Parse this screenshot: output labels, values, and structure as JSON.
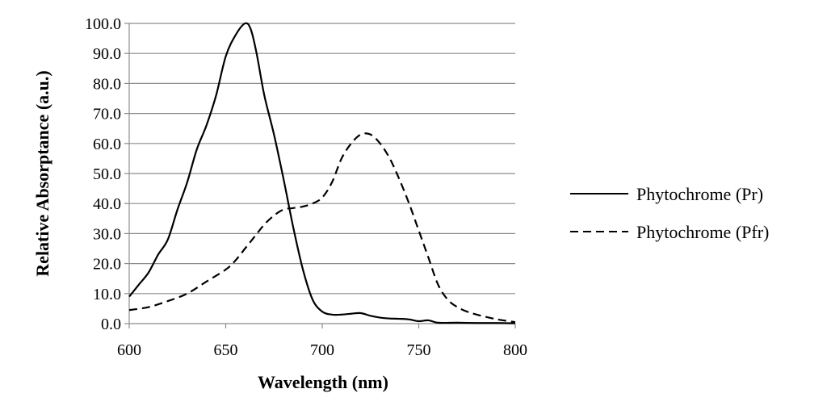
{
  "chart_data": {
    "type": "line",
    "title": "",
    "xlabel": "Wavelength  (nm)",
    "ylabel": "Relative Absorptance  (a.u.)",
    "xlim": [
      600,
      800
    ],
    "ylim": [
      0,
      100
    ],
    "x_ticks": [
      "600",
      "650",
      "700",
      "750",
      "800"
    ],
    "y_ticks": [
      "0.0",
      "10.0",
      "20.0",
      "30.0",
      "40.0",
      "50.0",
      "60.0",
      "70.0",
      "80.0",
      "90.0",
      "100.0"
    ],
    "grid": "horizontal",
    "legend_position": "right",
    "series": [
      {
        "name": "Phytochrome (Pr)",
        "line_style": "solid",
        "color": "#000000",
        "points": [
          [
            600,
            9
          ],
          [
            605,
            13
          ],
          [
            610,
            17
          ],
          [
            615,
            23
          ],
          [
            620,
            28
          ],
          [
            625,
            38
          ],
          [
            630,
            47
          ],
          [
            635,
            58
          ],
          [
            640,
            66
          ],
          [
            645,
            76
          ],
          [
            650,
            89
          ],
          [
            655,
            96
          ],
          [
            660,
            100
          ],
          [
            663,
            98
          ],
          [
            666,
            90
          ],
          [
            670,
            76
          ],
          [
            675,
            63
          ],
          [
            680,
            48
          ],
          [
            685,
            32
          ],
          [
            690,
            18
          ],
          [
            695,
            8
          ],
          [
            700,
            4
          ],
          [
            705,
            3
          ],
          [
            710,
            3
          ],
          [
            715,
            3.3
          ],
          [
            720,
            3.5
          ],
          [
            725,
            2.6
          ],
          [
            730,
            2.0
          ],
          [
            735,
            1.7
          ],
          [
            740,
            1.6
          ],
          [
            745,
            1.4
          ],
          [
            750,
            0.8
          ],
          [
            755,
            1.1
          ],
          [
            760,
            0.3
          ],
          [
            770,
            0.3
          ],
          [
            780,
            0.2
          ],
          [
            790,
            0.2
          ],
          [
            800,
            0.1
          ]
        ]
      },
      {
        "name": "Phytochrome (Pfr)",
        "line_style": "dashed",
        "color": "#000000",
        "points": [
          [
            600,
            4.5
          ],
          [
            610,
            5.5
          ],
          [
            620,
            7.5
          ],
          [
            630,
            10
          ],
          [
            640,
            14
          ],
          [
            650,
            18
          ],
          [
            655,
            21
          ],
          [
            660,
            25
          ],
          [
            665,
            29
          ],
          [
            670,
            33
          ],
          [
            675,
            36
          ],
          [
            680,
            38
          ],
          [
            685,
            38.5
          ],
          [
            690,
            39
          ],
          [
            695,
            40
          ],
          [
            700,
            42
          ],
          [
            705,
            47
          ],
          [
            710,
            55
          ],
          [
            715,
            60
          ],
          [
            720,
            63
          ],
          [
            725,
            63
          ],
          [
            730,
            60
          ],
          [
            735,
            55
          ],
          [
            740,
            48
          ],
          [
            745,
            40
          ],
          [
            750,
            31
          ],
          [
            755,
            22
          ],
          [
            760,
            13
          ],
          [
            765,
            8
          ],
          [
            770,
            5.5
          ],
          [
            775,
            4
          ],
          [
            780,
            3
          ],
          [
            790,
            1.5
          ],
          [
            800,
            0.5
          ]
        ]
      }
    ]
  }
}
